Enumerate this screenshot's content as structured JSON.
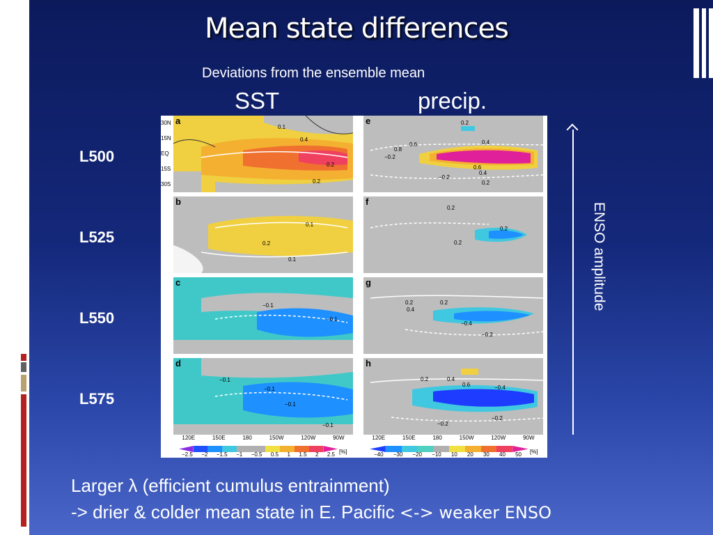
{
  "title": "Mean state differences",
  "subtitle": "Deviations from the ensemble mean",
  "columns": {
    "left": "SST",
    "right": "precip."
  },
  "rows": [
    "L500",
    "L525",
    "L550",
    "L575"
  ],
  "panels": {
    "left": [
      "a",
      "b",
      "c",
      "d"
    ],
    "right": [
      "e",
      "f",
      "g",
      "h"
    ]
  },
  "axis_lon": [
    "120E",
    "150E",
    "180",
    "150W",
    "120W",
    "90W"
  ],
  "axis_lat": [
    "30N",
    "15N",
    "EQ",
    "15S",
    "30S"
  ],
  "contours_left": [
    [
      "0.1",
      "0.4",
      "0.2",
      "0.2"
    ],
    [
      "0.1",
      "0.2",
      "0.1"
    ],
    [
      "−0.1",
      "−0.1"
    ],
    [
      "−0.1",
      "−0.1",
      "−0.1",
      "−0.1"
    ]
  ],
  "contours_right": [
    [
      "0.2",
      "0.4",
      "0.8",
      "0.6",
      "−0.2",
      "0.6",
      "0.4",
      "−0.2",
      "0.2"
    ],
    [
      "0.2",
      "0.2",
      "0.2"
    ],
    [
      "0.2",
      "0.2",
      "0.4",
      "−0.2",
      "−0.4"
    ],
    [
      "0.2",
      "0.4",
      "0.6",
      "−0.4",
      "−0.2",
      "−0.2"
    ]
  ],
  "colorbar_left": {
    "ticks": [
      "−2.5",
      "−2",
      "−1.5",
      "−1",
      "−0.5",
      "0.5",
      "1",
      "1.5",
      "2",
      "2.5"
    ],
    "unit": "[%]",
    "colors": [
      "#8a2be2",
      "#1e50ff",
      "#1e90ff",
      "#40c8e0",
      "#b0b0b0",
      "#b0b0b0",
      "#f0e040",
      "#f4b030",
      "#f07030",
      "#f04060",
      "#e0209a"
    ]
  },
  "colorbar_right": {
    "ticks": [
      "−40",
      "−30",
      "−20",
      "−10",
      "10",
      "20",
      "30",
      "40",
      "50"
    ],
    "unit": "[%]",
    "colors": [
      "#1e3cff",
      "#1e90ff",
      "#40c8e0",
      "#50d0c0",
      "#b0b0b0",
      "#f0e040",
      "#f4b030",
      "#f07030",
      "#f04060",
      "#e0209a"
    ]
  },
  "axis_label": "ENSO amplitude",
  "bottom": {
    "line1_pre": "Larger ",
    "line1_symbol": "λ",
    "line1_post": " (efficient cumulus entrainment)",
    "line2_main": "-> drier & colder mean state in E. Pacific ",
    "line2_tail": "<-> weaker ENSO"
  },
  "colors": {
    "background": "#14287a",
    "text": "#ffffff",
    "stripe_red": "#b52020",
    "stripe_tan": "#b8a070",
    "stripe_gray": "#606060"
  }
}
